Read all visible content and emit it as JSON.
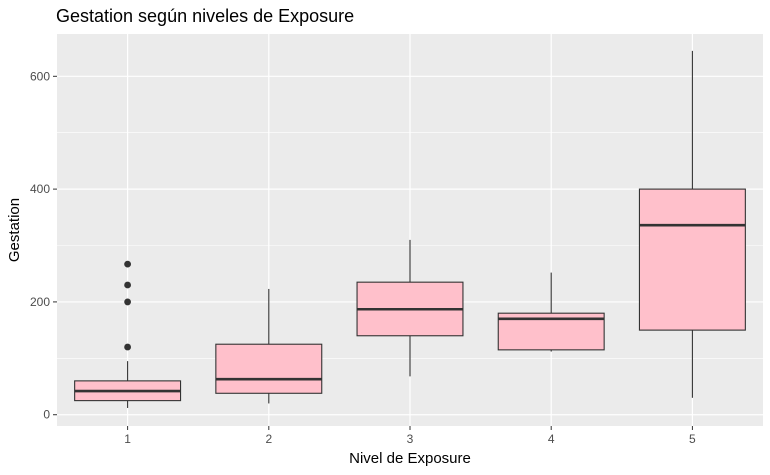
{
  "chart_data": {
    "type": "boxplot",
    "title": "Gestation según niveles de Exposure",
    "xlabel": "Nivel de Exposure",
    "ylabel": "Gestation",
    "categories": [
      "1",
      "2",
      "3",
      "4",
      "5"
    ],
    "ylim": [
      -20,
      675
    ],
    "yticks": [
      0,
      200,
      400,
      600
    ],
    "grid": true,
    "legend": "none",
    "boxes": [
      {
        "category": "1",
        "min": 12,
        "q1": 25,
        "median": 42,
        "q3": 60,
        "max": 95,
        "outliers": [
          120,
          200,
          230,
          267
        ]
      },
      {
        "category": "2",
        "min": 20,
        "q1": 38,
        "median": 63,
        "q3": 125,
        "max": 223,
        "outliers": []
      },
      {
        "category": "3",
        "min": 68,
        "q1": 140,
        "median": 187,
        "q3": 235,
        "max": 310,
        "outliers": []
      },
      {
        "category": "4",
        "min": 112,
        "q1": 115,
        "median": 170,
        "q3": 180,
        "max": 252,
        "outliers": []
      },
      {
        "category": "5",
        "min": 30,
        "q1": 150,
        "median": 336,
        "q3": 400,
        "max": 645,
        "outliers": []
      }
    ],
    "colors": {
      "panel": "#ebebeb",
      "grid": "#ffffff",
      "box_fill": "#ffc0cb",
      "box_line": "#333333",
      "tick": "#333333"
    }
  }
}
